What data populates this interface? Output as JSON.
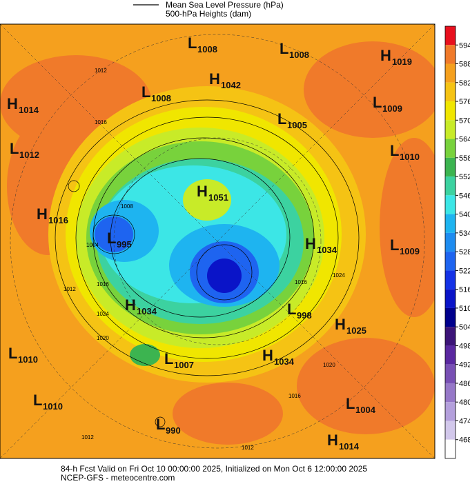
{
  "legend": [
    "Mean Sea Level Pressure (hPa)",
    "500-hPa Heights (dam)"
  ],
  "centers": [
    {
      "type": "L",
      "value": 1008
    },
    {
      "type": "L",
      "value": 1008
    },
    {
      "type": "H",
      "value": 1019
    },
    {
      "type": "H",
      "value": 1042
    },
    {
      "type": "L",
      "value": 1008
    },
    {
      "type": "H",
      "value": 1014
    },
    {
      "type": "L",
      "value": 1009
    },
    {
      "type": "L",
      "value": 1005
    },
    {
      "type": "L",
      "value": 1012
    },
    {
      "type": "L",
      "value": 1010
    },
    {
      "type": "H",
      "value": 1051
    },
    {
      "type": "H",
      "value": 1016
    },
    {
      "type": "L",
      "value": 995
    },
    {
      "type": "H",
      "value": 1034
    },
    {
      "type": "L",
      "value": 1009
    },
    {
      "type": "H",
      "value": 1034
    },
    {
      "type": "L",
      "value": 998
    },
    {
      "type": "H",
      "value": 1025
    },
    {
      "type": "L",
      "value": 1010
    },
    {
      "type": "L",
      "value": 1007
    },
    {
      "type": "H",
      "value": 1034
    },
    {
      "type": "L",
      "value": 1010
    },
    {
      "type": "L",
      "value": 1004
    },
    {
      "type": "L",
      "value": 990
    },
    {
      "type": "H",
      "value": 1014
    }
  ],
  "contour_labels": [
    1012,
    1016,
    1008,
    1004,
    1012,
    1016,
    1024,
    1020,
    1020,
    1016,
    1012,
    1012,
    1024,
    1016
  ],
  "colorbar": {
    "ticks": [
      594,
      588,
      582,
      576,
      570,
      564,
      558,
      552,
      546,
      540,
      534,
      528,
      522,
      516,
      510,
      504,
      498,
      492,
      486,
      480,
      474,
      468
    ],
    "colors": [
      "#e8101e",
      "#f07a2a",
      "#f5a01e",
      "#f5c314",
      "#f0e600",
      "#c8eb28",
      "#78d23c",
      "#3cb450",
      "#3cd2a0",
      "#3ce6e6",
      "#1eb4f0",
      "#1e8cf0",
      "#1e64f0",
      "#1432e6",
      "#0a14c8",
      "#00008c",
      "#3c1478",
      "#5a28a0",
      "#7850b4",
      "#9678c8",
      "#b4a0dc",
      "#d2c8eb",
      "#ffffff"
    ]
  },
  "footer": [
    "84-h Fcst Valid on Fri Oct 10 00:00:00 2025, Initialized on Mon Oct  6 12:00:00 2025",
    "NCEP-GFS  - meteocentre.com"
  ]
}
